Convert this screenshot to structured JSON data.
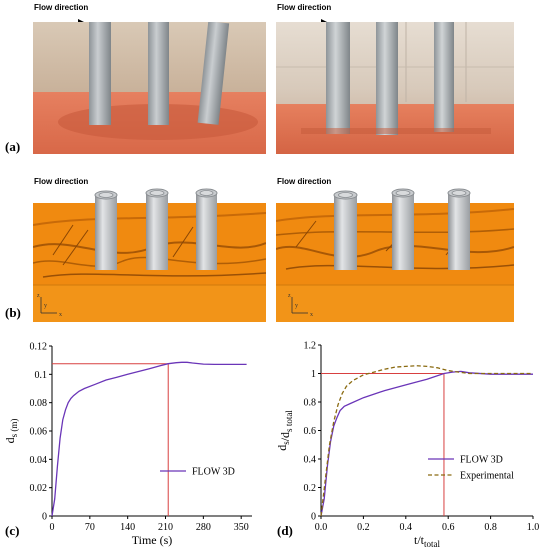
{
  "panels": {
    "a": {
      "label": "(a)",
      "flow_left": "Flow direction",
      "flow_right": "Flow direction"
    },
    "b": {
      "label": "(b)",
      "flow_left": "Flow direction",
      "flow_right": "Flow direction",
      "axis_z": "z",
      "axis_y": "y",
      "axis_x": "x"
    },
    "c": {
      "label": "(c)"
    },
    "d": {
      "label": "(d)"
    }
  },
  "colors": {
    "sand": "#e8785a",
    "cfd_orange": "#f08a10",
    "pile_gray": "#b4b8ba",
    "flow3d": "#6a35b8",
    "experimental": "#8a6a10",
    "reference_line": "#d84040"
  },
  "chart_data": [
    {
      "type": "line",
      "panel": "c",
      "xlabel": "Time (s)",
      "ylabel": "d_s (m)",
      "xlim": [
        0,
        370
      ],
      "ylim": [
        0,
        0.12
      ],
      "xticks": [
        0,
        70,
        140,
        210,
        280,
        350
      ],
      "yticks": [
        0,
        0.02,
        0.04,
        0.06,
        0.08,
        0.1,
        0.12
      ],
      "ytick_labels": [
        "0",
        "0.02",
        "0.04",
        "0.06",
        "0.08",
        "0.1",
        "0.12"
      ],
      "legend": "center-right",
      "series": [
        {
          "name": "FLOW 3D",
          "style": "solid",
          "x": [
            0,
            5,
            10,
            15,
            20,
            25,
            30,
            35,
            40,
            50,
            60,
            80,
            100,
            120,
            140,
            160,
            180,
            200,
            215,
            230,
            240,
            250,
            260,
            280,
            300,
            320,
            340,
            360
          ],
          "y": [
            0,
            0.012,
            0.035,
            0.055,
            0.068,
            0.075,
            0.08,
            0.083,
            0.085,
            0.088,
            0.09,
            0.093,
            0.096,
            0.098,
            0.1,
            0.102,
            0.104,
            0.106,
            0.1075,
            0.1082,
            0.1085,
            0.1085,
            0.108,
            0.1072,
            0.107,
            0.107,
            0.107,
            0.107
          ]
        }
      ],
      "reference_lines": {
        "horizontal_y": 0.1075,
        "vertical_x": 215
      }
    },
    {
      "type": "line",
      "panel": "d",
      "xlabel": "t/t_total",
      "ylabel": "d_s/d_s total",
      "xlim": [
        0,
        1.0
      ],
      "ylim": [
        0,
        1.2
      ],
      "xticks": [
        0.0,
        0.2,
        0.4,
        0.6,
        0.8,
        1.0
      ],
      "xtick_labels": [
        "0.0",
        "0.2",
        "0.4",
        "0.6",
        "0.8",
        "1.0"
      ],
      "yticks": [
        0,
        0.2,
        0.4,
        0.6,
        0.8,
        1.0,
        1.2
      ],
      "ytick_labels": [
        "0",
        "0.2",
        "0.4",
        "0.6",
        "0.8",
        "1",
        "1.2"
      ],
      "legend": "bottom-right",
      "series": [
        {
          "name": "FLOW 3D",
          "style": "solid",
          "x": [
            0,
            0.015,
            0.03,
            0.045,
            0.06,
            0.075,
            0.09,
            0.11,
            0.14,
            0.2,
            0.3,
            0.4,
            0.5,
            0.58,
            0.62,
            0.66,
            0.7,
            0.8,
            0.9,
            1.0
          ],
          "y": [
            0,
            0.12,
            0.35,
            0.52,
            0.63,
            0.69,
            0.74,
            0.77,
            0.79,
            0.83,
            0.88,
            0.92,
            0.96,
            1.0,
            1.01,
            1.015,
            1.005,
            0.995,
            0.995,
            0.995
          ]
        },
        {
          "name": "Experimental",
          "style": "dashed",
          "x": [
            0,
            0.02,
            0.04,
            0.06,
            0.08,
            0.1,
            0.12,
            0.15,
            0.2,
            0.25,
            0.3,
            0.35,
            0.4,
            0.45,
            0.5,
            0.55,
            0.6,
            0.65,
            0.7,
            0.8,
            0.9,
            1.0
          ],
          "y": [
            0,
            0.25,
            0.5,
            0.66,
            0.78,
            0.86,
            0.91,
            0.95,
            0.99,
            1.01,
            1.03,
            1.045,
            1.05,
            1.055,
            1.05,
            1.04,
            1.02,
            1.01,
            1.0,
            1.0,
            1.0,
            1.0
          ]
        }
      ],
      "reference_lines": {
        "horizontal_y": 1.0,
        "vertical_x": 0.58
      }
    }
  ]
}
